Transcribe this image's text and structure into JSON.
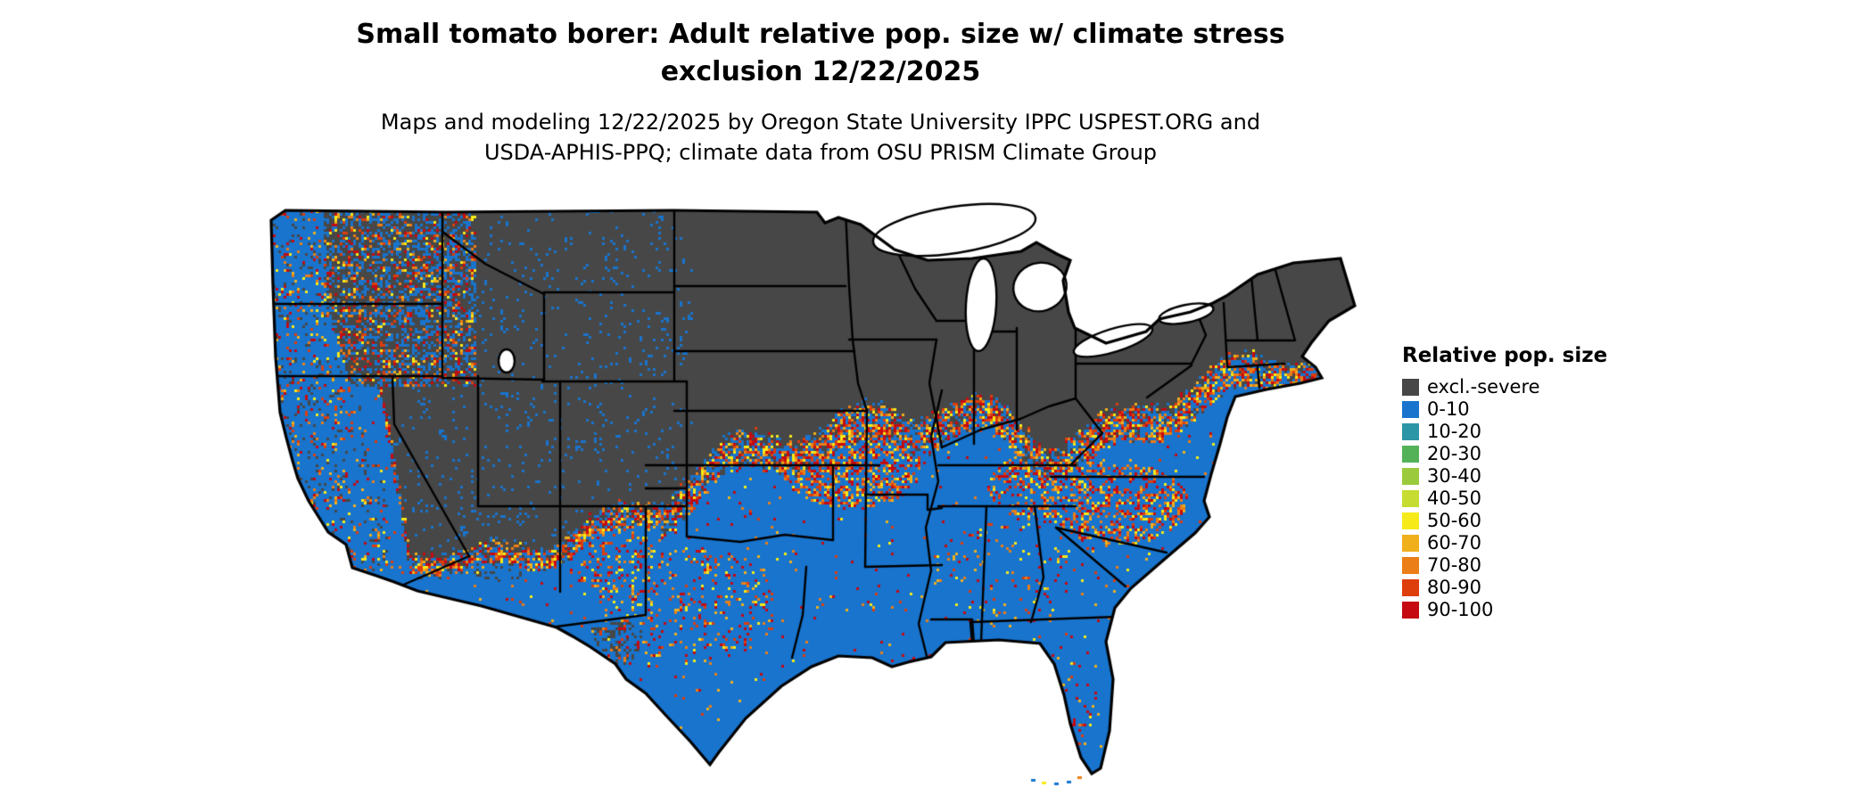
{
  "title": {
    "line1": "Small tomato borer: Adult relative pop. size w/ climate stress",
    "line2": "exclusion 12/22/2025"
  },
  "subtitle": {
    "line1": "Maps and modeling 12/22/2025 by Oregon State University IPPC USPEST.ORG and",
    "line2": "USDA-APHIS-PPQ; climate data from OSU PRISM Climate Group"
  },
  "legend": {
    "title": "Relative pop. size",
    "entries": [
      {
        "label": "excl.-severe",
        "color": "#474747"
      },
      {
        "label": "0-10",
        "color": "#1874CD"
      },
      {
        "label": "10-20",
        "color": "#2D96A6"
      },
      {
        "label": "20-30",
        "color": "#53B257"
      },
      {
        "label": "30-40",
        "color": "#9BCB3C"
      },
      {
        "label": "40-50",
        "color": "#C6DC30"
      },
      {
        "label": "50-60",
        "color": "#F6EB18"
      },
      {
        "label": "60-70",
        "color": "#F0B01C"
      },
      {
        "label": "70-80",
        "color": "#EB7E16"
      },
      {
        "label": "80-90",
        "color": "#DE3D0C"
      },
      {
        "label": "90-100",
        "color": "#C50A11"
      }
    ]
  },
  "map": {
    "water_color": "#FFFFFF",
    "border_color": "#000000"
  }
}
